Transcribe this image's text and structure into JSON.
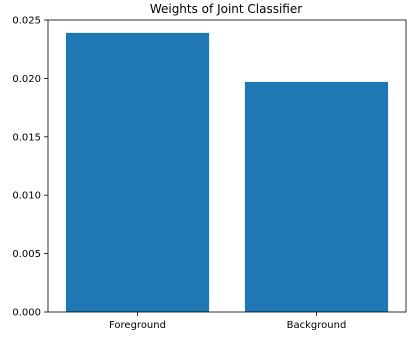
{
  "chart_data": {
    "type": "bar",
    "title": "Weights of Joint Classifier",
    "xlabel": "",
    "ylabel": "",
    "categories": [
      "Foreground",
      "Background"
    ],
    "values": [
      0.0239,
      0.0197
    ],
    "ylim": [
      0,
      0.025
    ],
    "yticks": [
      0,
      0.005,
      0.01,
      0.015,
      0.02,
      0.025
    ],
    "ytick_labels": [
      "0.000",
      "0.005",
      "0.010",
      "0.015",
      "0.020",
      "0.025"
    ],
    "grid": false,
    "legend": "none",
    "bar_color": "#1f77b4"
  }
}
